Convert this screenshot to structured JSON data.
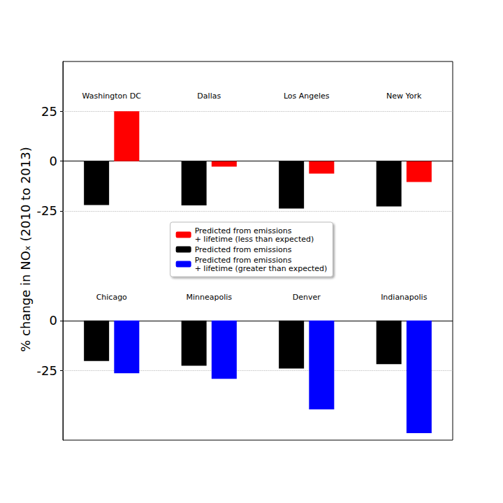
{
  "chart_data": [
    {
      "type": "bar",
      "ylabel": "% change in NOₓ (2010 to 2013)",
      "categories": [
        "Washington DC",
        "Dallas",
        "Los Angeles",
        "New York"
      ],
      "series": [
        {
          "name": "Predicted from emissions",
          "color": "#000000",
          "values": [
            -22.0,
            -22.2,
            -23.8,
            -22.7
          ]
        },
        {
          "name": "Predicted from emissions\n+ lifetime (less than expected)",
          "color": "#ff0000",
          "values": [
            25.0,
            -2.8,
            -6.3,
            -10.5
          ]
        }
      ],
      "ylim": [
        -45,
        50
      ],
      "yticks": [
        -25,
        0,
        25
      ],
      "grid": true,
      "legend": "center"
    },
    {
      "type": "bar",
      "categories": [
        "Chicago",
        "Minneapolis",
        "Denver",
        "Indianapolis"
      ],
      "series": [
        {
          "name": "Predicted from emissions",
          "color": "#000000",
          "values": [
            -20.3,
            -22.7,
            -24.1,
            -21.9
          ]
        },
        {
          "name": "Predicted from emissions\n+ lifetime (greater than expected)",
          "color": "#0000ff",
          "values": [
            -26.4,
            -29.2,
            -44.6,
            -56.5
          ]
        }
      ],
      "ylim": [
        -60,
        35
      ],
      "yticks": [
        -25,
        0
      ],
      "grid": true
    }
  ]
}
